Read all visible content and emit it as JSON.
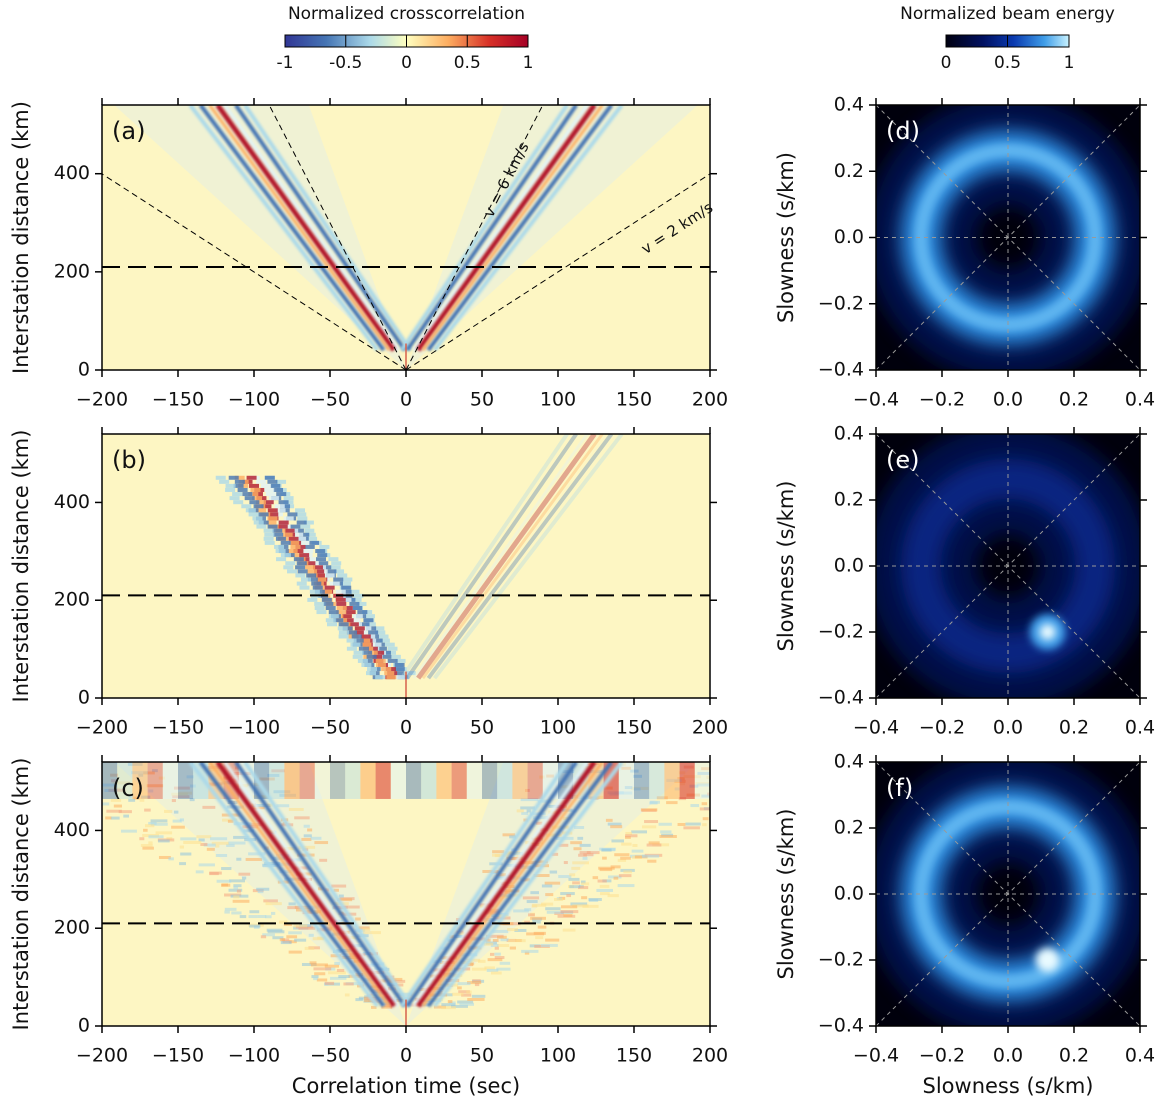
{
  "colorbars": [
    {
      "title": "Normalized crosscorrelation",
      "lim": [
        -1,
        1
      ],
      "ticks": [
        -1,
        -0.5,
        0,
        0.5,
        1
      ]
    },
    {
      "title": "Normalized beam energy",
      "lim": [
        0,
        1
      ],
      "ticks": [
        0,
        0.5,
        1
      ]
    }
  ],
  "chart_data": [
    {
      "type": "heatmap",
      "panel_label": "(a)",
      "ylabel": "Interstation distance (km)",
      "xlim": [
        -200,
        200
      ],
      "ylim": [
        0,
        540
      ],
      "xticks": [
        {
          "value": -200,
          "label": "−200"
        },
        {
          "value": -150,
          "label": "−150"
        },
        {
          "value": -100,
          "label": "−100"
        },
        {
          "value": -50,
          "label": "−50"
        },
        0,
        50,
        100,
        150,
        200
      ],
      "yticks": [
        0,
        200,
        400
      ],
      "reference_line": 210,
      "annotations": [
        "v = 6 km/s",
        "v = 2 km/s"
      ]
    },
    {
      "type": "beam",
      "panel_label": "(d)",
      "ylabel": "Slowness (s/km)",
      "xlim": [
        -0.4,
        0.4
      ],
      "ylim": [
        -0.4,
        0.4
      ],
      "xticks": [
        {
          "value": -0.4,
          "label": "−0.4"
        },
        {
          "value": -0.2,
          "label": "−0.2"
        },
        {
          "value": 0,
          "label": "0.0"
        },
        0.2,
        0.4
      ],
      "yticks": [
        {
          "value": -0.4,
          "label": "−0.4"
        },
        {
          "value": -0.2,
          "label": "−0.2"
        },
        {
          "value": 0,
          "label": "0.0"
        },
        0.2,
        0.4
      ]
    },
    {
      "type": "heatmap",
      "panel_label": "(b)",
      "ylabel": "Interstation distance (km)",
      "xlim": [
        -200,
        200
      ],
      "ylim": [
        0,
        540
      ],
      "xticks": [
        {
          "value": -200,
          "label": "−200"
        },
        {
          "value": -150,
          "label": "−150"
        },
        {
          "value": -100,
          "label": "−100"
        },
        {
          "value": -50,
          "label": "−50"
        },
        0,
        50,
        100,
        150,
        200
      ],
      "yticks": [
        0,
        200,
        400
      ],
      "reference_line": 210
    },
    {
      "type": "beam",
      "panel_label": "(e)",
      "ylabel": "Slowness (s/km)",
      "xlim": [
        -0.4,
        0.4
      ],
      "ylim": [
        -0.4,
        0.4
      ],
      "xticks": [
        {
          "value": -0.4,
          "label": "−0.4"
        },
        {
          "value": -0.2,
          "label": "−0.2"
        },
        {
          "value": 0,
          "label": "0.0"
        },
        0.2,
        0.4
      ],
      "yticks": [
        {
          "value": -0.4,
          "label": "−0.4"
        },
        {
          "value": -0.2,
          "label": "−0.2"
        },
        {
          "value": 0,
          "label": "0.0"
        },
        0.2,
        0.4
      ]
    },
    {
      "type": "heatmap",
      "panel_label": "(c)",
      "ylabel": "Interstation distance (km)",
      "xlabel": "Correlation time (sec)",
      "xlim": [
        -200,
        200
      ],
      "ylim": [
        0,
        540
      ],
      "xticks": [
        {
          "value": -200,
          "label": "−200"
        },
        {
          "value": -150,
          "label": "−150"
        },
        {
          "value": -100,
          "label": "−100"
        },
        {
          "value": -50,
          "label": "−50"
        },
        0,
        50,
        100,
        150,
        200
      ],
      "yticks": [
        0,
        200,
        400
      ],
      "reference_line": 210
    },
    {
      "type": "beam",
      "panel_label": "(f)",
      "ylabel": "Slowness (s/km)",
      "xlabel": "Slowness (s/km)",
      "xlim": [
        -0.4,
        0.4
      ],
      "ylim": [
        -0.4,
        0.4
      ],
      "xticks": [
        {
          "value": -0.4,
          "label": "−0.4"
        },
        {
          "value": -0.2,
          "label": "−0.2"
        },
        {
          "value": 0,
          "label": "0.0"
        },
        0.2,
        0.4
      ],
      "yticks": [
        {
          "value": -0.4,
          "label": "−0.4"
        },
        {
          "value": -0.2,
          "label": "−0.2"
        },
        {
          "value": 0,
          "label": "0.0"
        },
        0.2,
        0.4
      ]
    }
  ]
}
